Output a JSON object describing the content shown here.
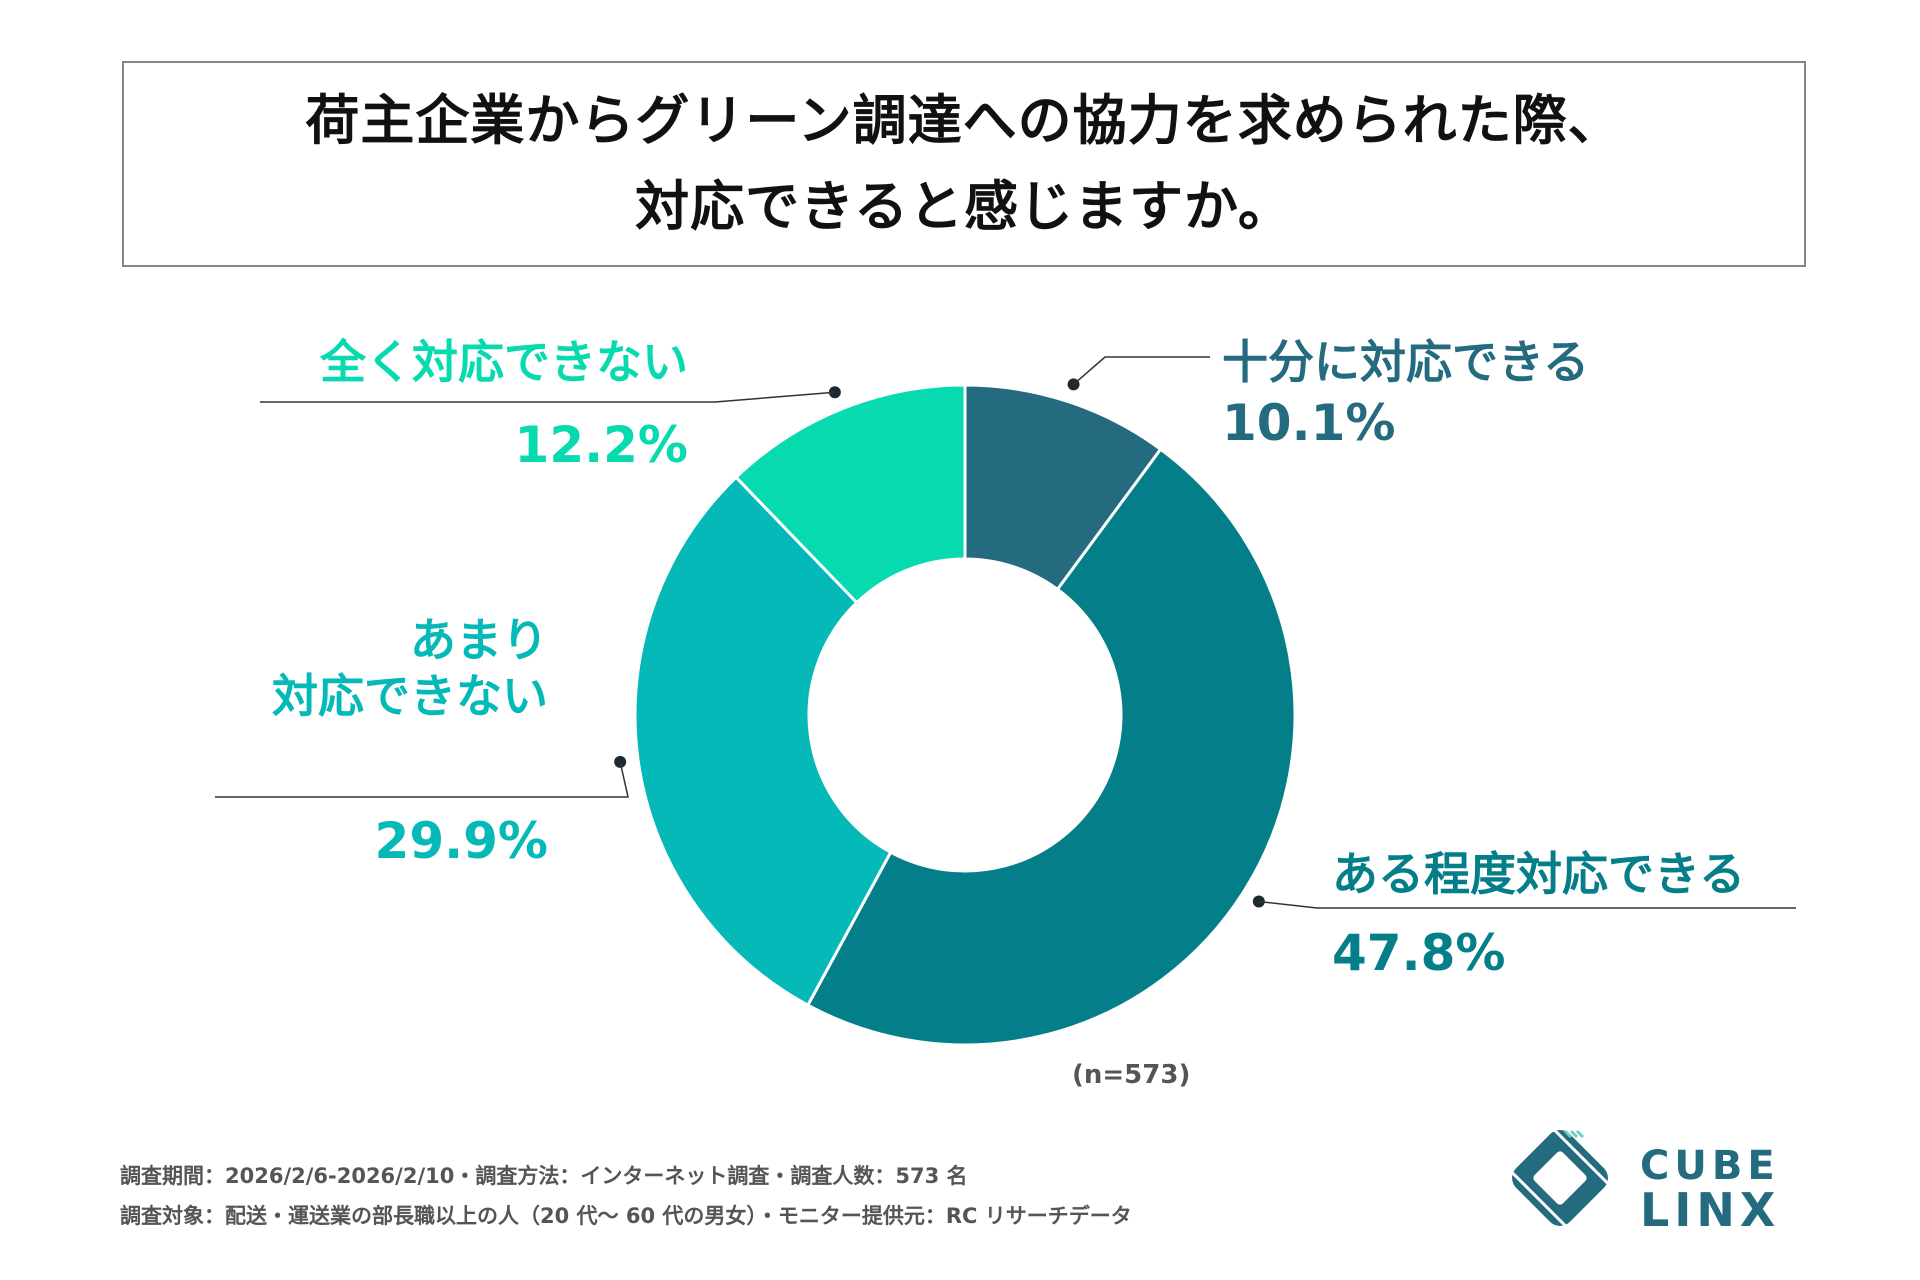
{
  "title": {
    "line1": "荷主企業からグリーン調達への協力を求められた際、",
    "line2": "対応できると感じますか。"
  },
  "chart_data": {
    "type": "pie",
    "donut": true,
    "n_label": "(n=573)",
    "slices": [
      {
        "label": "十分に対応できる",
        "value": 10.1,
        "value_text": "10.1%",
        "color": "#256b80"
      },
      {
        "label": "ある程度対応できる",
        "value": 47.8,
        "value_text": "47.8%",
        "color": "#047f89"
      },
      {
        "label": "あまり\n対応できない",
        "value": 29.9,
        "value_text": "29.9%",
        "color": "#04b9b7"
      },
      {
        "label": "全く対応できない",
        "value": 12.2,
        "value_text": "12.2%",
        "color": "#08dab0"
      }
    ]
  },
  "footer": {
    "line1": "調査期間：2026/2/6-2026/2/10・調査方法：インターネット調査・調査人数：573 名",
    "line2": "調査対象：配送・運送業の部長職以上の人（20 代〜 60 代の男女）・モニター提供元：RC リサーチデータ"
  },
  "logo": {
    "line1": "CUBE",
    "line2": "LINX",
    "icon": "cube-linx-logo-icon",
    "color": "#256b80"
  }
}
